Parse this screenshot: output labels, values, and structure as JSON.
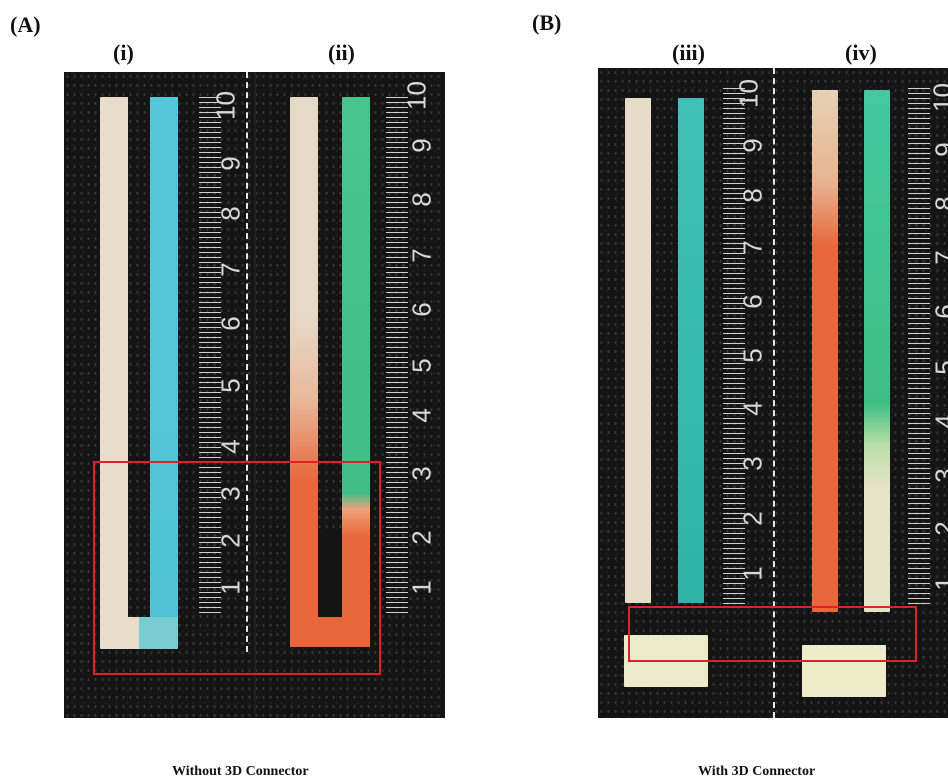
{
  "panel_a": {
    "label": "(A)",
    "sub_i": "(i)",
    "sub_ii": "(ii)",
    "caption": "Without 3D Connector"
  },
  "panel_b": {
    "label": "(B)",
    "sub_iii": "(iii)",
    "sub_iv": "(iv)",
    "caption": "With 3D Connector"
  },
  "ruler_numbers": [
    "1",
    "2",
    "3",
    "4",
    "5",
    "6",
    "7",
    "8",
    "9",
    "10"
  ],
  "colors": {
    "background": "#141414",
    "control_strip": "#e8dccb",
    "blue_strip": "#4fc3d6",
    "green_strip": "#3fbf86",
    "orange_strip": "#e8663a",
    "highlight_box": "#e0212a"
  }
}
